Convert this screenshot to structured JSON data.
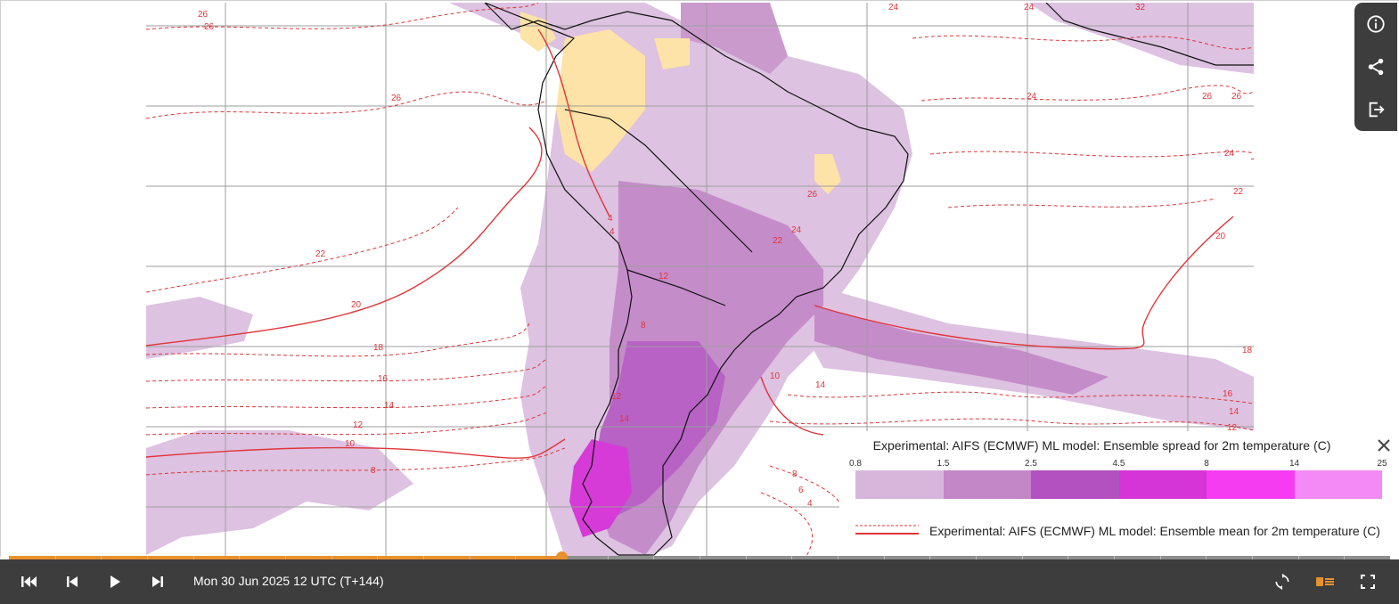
{
  "toolbar": {
    "buttons": [
      {
        "name": "info-icon"
      },
      {
        "name": "share-icon"
      },
      {
        "name": "export-icon"
      }
    ]
  },
  "map": {
    "contour_labels": [
      "26",
      "26",
      "26",
      "24",
      "24",
      "32",
      "22",
      "22",
      "20",
      "20",
      "24",
      "26",
      "18",
      "16",
      "14",
      "12",
      "10",
      "8",
      "8",
      "6",
      "4",
      "14",
      "16",
      "18",
      "14",
      "12",
      "24",
      "22",
      "26",
      "24",
      "26",
      "4",
      "4",
      "12",
      "8",
      "12",
      "14",
      "10"
    ],
    "colors": {
      "contour": "#e0353a",
      "land_dry": "#fde2a4",
      "grid": "#9e9e9e",
      "coast": "#111111"
    }
  },
  "legend": {
    "spread_title": "Experimental: AIFS (ECMWF) ML model: Ensemble spread for 2m temperature (C)",
    "ticks": [
      "0.8",
      "1.5",
      "2.5",
      "4.5",
      "8",
      "14",
      "25"
    ],
    "colors": [
      "#d8b6dc",
      "#c387c8",
      "#b251bf",
      "#d534d6",
      "#f53cf0",
      "#f48af5"
    ],
    "mean_label": "Experimental: AIFS (ECMWF) ML model: Ensemble mean for 2m temperature (C)",
    "mean_line_color": "#e0353a",
    "close_icon": "close-icon"
  },
  "timeline": {
    "progress": 0.4,
    "time_label": "Mon 30 Jun 2025 12 UTC (T+144)",
    "progress_color": "#e8912d"
  },
  "controls": {
    "buttons": [
      "first-frame-icon",
      "previous-frame-icon",
      "play-icon",
      "next-frame-icon",
      "loop-icon",
      "legend-toggle-icon",
      "fullscreen-icon"
    ]
  }
}
